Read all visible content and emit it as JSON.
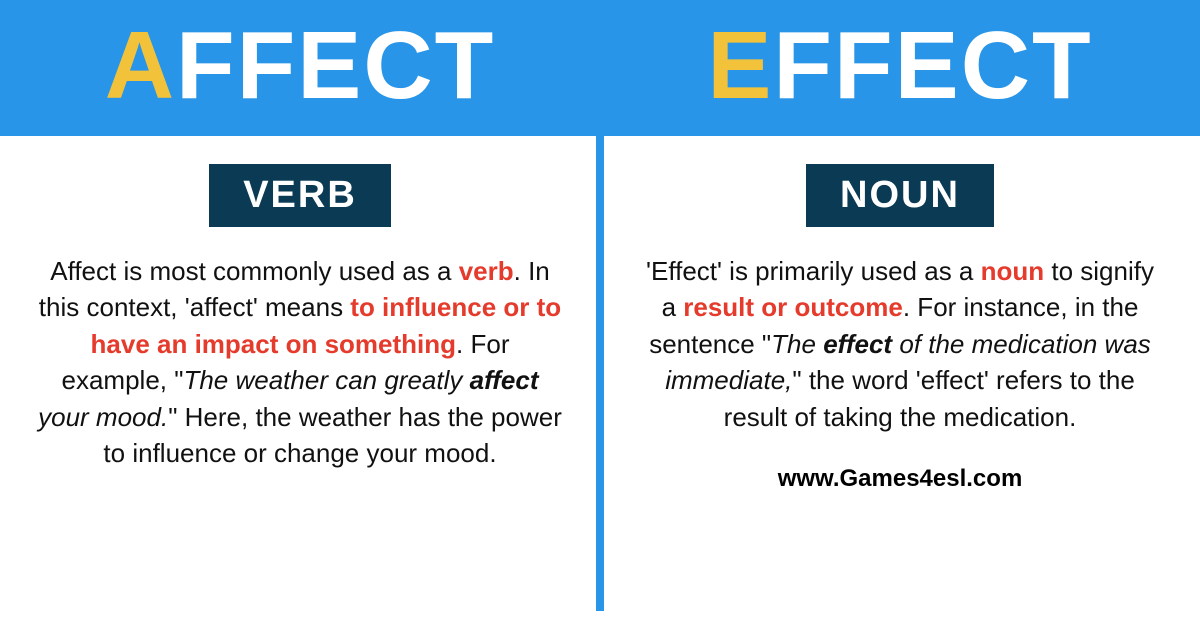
{
  "colors": {
    "header_bg": "#2895e8",
    "accent_yellow": "#f3c23b",
    "header_text": "#ffffff",
    "badge_bg": "#0b3a55",
    "highlight_red": "#e53b2c",
    "divider": "#2895e8",
    "body_text": "#111111"
  },
  "typography": {
    "big_word_size": 96,
    "badge_size": 38,
    "body_size": 26,
    "footer_size": 24
  },
  "header": {
    "left_first": "A",
    "left_rest": "FFECT",
    "right_first": "E",
    "right_rest": "FFECT"
  },
  "left": {
    "badge": "VERB",
    "p1": "Affect is most commonly used as a ",
    "h1": "verb",
    "p2": ". In this context, 'affect' means ",
    "h2": "to influence or to have an impact on something",
    "p3": ". For example, \"",
    "ex_pre": "The weather can greatly ",
    "ex_bold": "affect",
    "ex_post": " your mood.",
    "p4": "\" Here, the weather has the power to influence or change your mood."
  },
  "right": {
    "badge": "NOUN",
    "p1": "'Effect' is primarily used as a ",
    "h1": "noun",
    "p2": " to signify a ",
    "h2": "result or outcome",
    "p3": ". For instance, in the sentence \"",
    "ex_pre": "The ",
    "ex_bold": "effect",
    "ex_post": " of the medication was immediate,",
    "p4": "\" the word 'effect' refers to the result of taking the medication."
  },
  "footer": "www.Games4esl.com"
}
